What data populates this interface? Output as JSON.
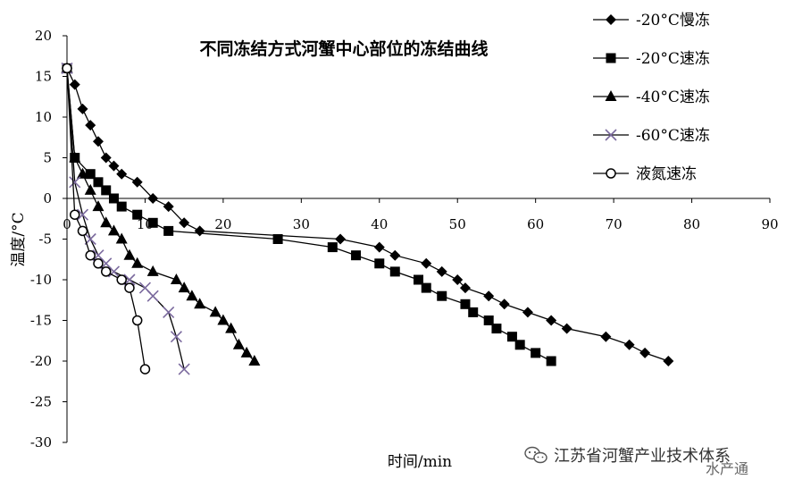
{
  "chart_data": {
    "type": "line",
    "title": "不同冻结方式河蟹中心部位的冻结曲线",
    "xlabel": "时间/min",
    "ylabel": "温度/°C",
    "xlim": [
      0,
      90
    ],
    "ylim": [
      -30,
      20
    ],
    "x_ticks": [
      "0",
      "10",
      "20",
      "30",
      "40",
      "50",
      "60",
      "70",
      "80",
      "90"
    ],
    "y_ticks": [
      "20",
      "15",
      "10",
      "5",
      "0",
      "-5",
      "-10",
      "-15",
      "-20",
      "-25",
      "-30"
    ],
    "grid": false,
    "legend_position": "right",
    "series": [
      {
        "name": "-20°C慢冻",
        "marker": "diamond",
        "color": "#000000",
        "points": [
          [
            0,
            16
          ],
          [
            1,
            14
          ],
          [
            2,
            11
          ],
          [
            3,
            9
          ],
          [
            4,
            7
          ],
          [
            5,
            5
          ],
          [
            6,
            4
          ],
          [
            7,
            3
          ],
          [
            9,
            2
          ],
          [
            11,
            0
          ],
          [
            13,
            -1
          ],
          [
            15,
            -3
          ],
          [
            17,
            -4
          ],
          [
            35,
            -5
          ],
          [
            40,
            -6
          ],
          [
            42,
            -7
          ],
          [
            46,
            -8
          ],
          [
            48,
            -9
          ],
          [
            50,
            -10
          ],
          [
            51,
            -11
          ],
          [
            54,
            -12
          ],
          [
            56,
            -13
          ],
          [
            59,
            -14
          ],
          [
            62,
            -15
          ],
          [
            64,
            -16
          ],
          [
            69,
            -17
          ],
          [
            72,
            -18
          ],
          [
            74,
            -19
          ],
          [
            77,
            -20
          ]
        ]
      },
      {
        "name": "-20°C速冻",
        "marker": "square",
        "color": "#000000",
        "points": [
          [
            0,
            16
          ],
          [
            1,
            5
          ],
          [
            3,
            3
          ],
          [
            4,
            2
          ],
          [
            5,
            1
          ],
          [
            6,
            0
          ],
          [
            7,
            -1
          ],
          [
            9,
            -2
          ],
          [
            11,
            -3
          ],
          [
            13,
            -4
          ],
          [
            27,
            -5
          ],
          [
            34,
            -6
          ],
          [
            37,
            -7
          ],
          [
            40,
            -8
          ],
          [
            42,
            -9
          ],
          [
            45,
            -10
          ],
          [
            46,
            -11
          ],
          [
            48,
            -12
          ],
          [
            51,
            -13
          ],
          [
            52,
            -14
          ],
          [
            54,
            -15
          ],
          [
            55,
            -16
          ],
          [
            57,
            -17
          ],
          [
            58,
            -18
          ],
          [
            60,
            -19
          ],
          [
            62,
            -20
          ]
        ]
      },
      {
        "name": "-40°C速冻",
        "marker": "triangle",
        "color": "#000000",
        "points": [
          [
            0,
            16
          ],
          [
            1,
            5
          ],
          [
            2,
            3
          ],
          [
            3,
            1
          ],
          [
            4,
            -1
          ],
          [
            5,
            -3
          ],
          [
            6,
            -4
          ],
          [
            7,
            -5
          ],
          [
            8,
            -7
          ],
          [
            9,
            -8
          ],
          [
            11,
            -9
          ],
          [
            14,
            -10
          ],
          [
            15,
            -11
          ],
          [
            16,
            -12
          ],
          [
            17,
            -13
          ],
          [
            19,
            -14
          ],
          [
            20,
            -15
          ],
          [
            21,
            -16
          ],
          [
            22,
            -18
          ],
          [
            23,
            -19
          ],
          [
            24,
            -20
          ]
        ]
      },
      {
        "name": "-60°C速冻",
        "marker": "x",
        "color": "#7b6a9e",
        "points": [
          [
            0,
            16
          ],
          [
            1,
            2
          ],
          [
            2,
            -2
          ],
          [
            3,
            -5
          ],
          [
            4,
            -7
          ],
          [
            5,
            -8
          ],
          [
            6,
            -9
          ],
          [
            8,
            -10
          ],
          [
            10,
            -11
          ],
          [
            11,
            -12
          ],
          [
            13,
            -14
          ],
          [
            14,
            -17
          ],
          [
            15,
            -21
          ]
        ]
      },
      {
        "name": "液氮速冻",
        "marker": "circle",
        "color": "#000000",
        "points": [
          [
            0,
            16
          ],
          [
            1,
            -2
          ],
          [
            2,
            -4
          ],
          [
            3,
            -7
          ],
          [
            4,
            -8
          ],
          [
            5,
            -9
          ],
          [
            7,
            -10
          ],
          [
            8,
            -11
          ],
          [
            9,
            -15
          ],
          [
            10,
            -21
          ]
        ]
      }
    ]
  },
  "watermark": {
    "icon": "wechat-icon",
    "text": "江苏省河蟹产业技术体系",
    "stamp": "水产通"
  }
}
